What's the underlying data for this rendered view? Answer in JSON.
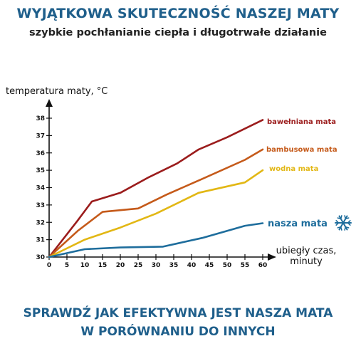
{
  "header": {
    "title": "WYJĄTKOWA SKUTECZNOŚĆ NASZEJ MATY",
    "subtitle": "szybkie pochłanianie ciepła i długotrwałe działanie"
  },
  "footer": {
    "line1": "SPRAWDŹ JAK EFEKTYWNA JEST NASZA MATA",
    "line2": "W PORÓWNANIU DO INNYCH"
  },
  "icons": {
    "ours": "snowflake-icon"
  },
  "chart_data": {
    "type": "line",
    "title": "",
    "ylabel": "temperatura maty, °C",
    "xlabel_line1": "ubiegły czas,",
    "xlabel_line2": "minuty",
    "x_ticks": [
      0,
      5,
      10,
      15,
      20,
      25,
      30,
      35,
      40,
      45,
      50,
      55,
      60
    ],
    "y_ticks": [
      30,
      31,
      32,
      33,
      34,
      35,
      36,
      37,
      38
    ],
    "xlim": [
      0,
      60
    ],
    "ylim": [
      30,
      38.8
    ],
    "grid": false,
    "series": [
      {
        "name": "bawełniana mata",
        "color": "#9b1c1c",
        "x": [
          0,
          8,
          12,
          20,
          28,
          36,
          42,
          50,
          60
        ],
        "y": [
          30.0,
          32.1,
          33.2,
          33.7,
          34.6,
          35.4,
          36.2,
          36.9,
          37.9
        ]
      },
      {
        "name": "bambusowa mata",
        "color": "#c55a1a",
        "x": [
          0,
          8,
          15,
          25,
          33,
          43,
          55,
          60
        ],
        "y": [
          30.0,
          31.5,
          32.6,
          32.8,
          33.6,
          34.5,
          35.6,
          36.2
        ]
      },
      {
        "name": "wodna mata",
        "color": "#e2b714",
        "x": [
          0,
          10,
          20,
          30,
          42,
          55,
          60
        ],
        "y": [
          30.0,
          31.0,
          31.7,
          32.5,
          33.7,
          34.3,
          35.0
        ]
      },
      {
        "name": "nasza mata",
        "color": "#1e6d9c",
        "x": [
          0,
          10,
          20,
          32,
          43,
          55,
          60
        ],
        "y": [
          30.0,
          30.45,
          30.55,
          30.6,
          31.1,
          31.8,
          31.95
        ]
      }
    ]
  }
}
